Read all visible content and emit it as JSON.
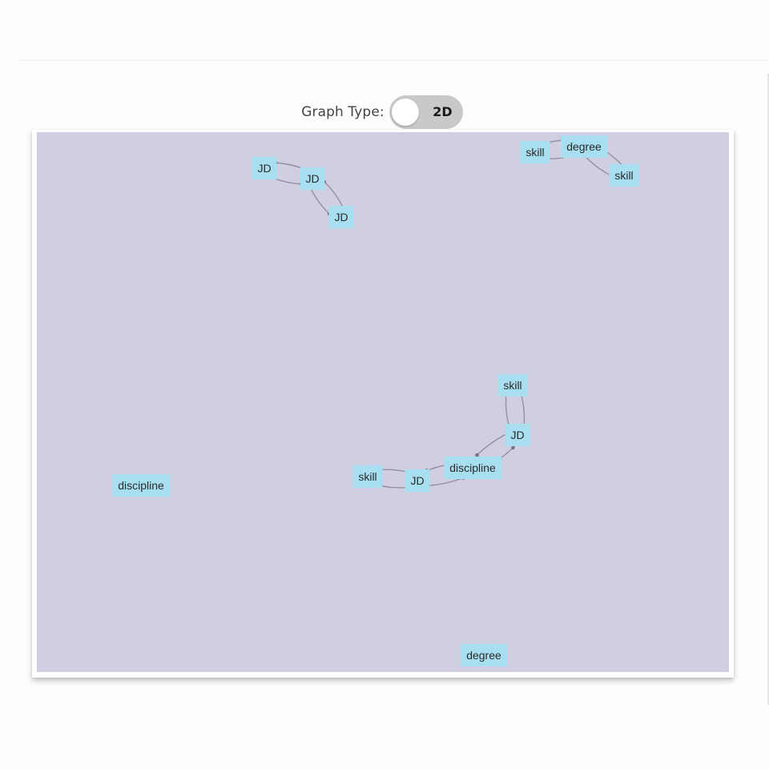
{
  "controls": {
    "graph_type_label": "Graph Type:",
    "toggle_value": "2D"
  },
  "colors": {
    "canvas_background": "#d0cfe1",
    "node_fill": "#a8dff0",
    "edge": "#8f8c9a"
  },
  "graph": {
    "nodes": [
      {
        "id": "jd1",
        "label": "JD"
      },
      {
        "id": "jd2",
        "label": "JD"
      },
      {
        "id": "jd3",
        "label": "JD"
      },
      {
        "id": "skill1",
        "label": "skill"
      },
      {
        "id": "degree1",
        "label": "degree"
      },
      {
        "id": "skill2",
        "label": "skill"
      },
      {
        "id": "skill3",
        "label": "skill"
      },
      {
        "id": "jd4",
        "label": "JD"
      },
      {
        "id": "discipline1",
        "label": "discipline"
      },
      {
        "id": "skill4",
        "label": "skill"
      },
      {
        "id": "jd5",
        "label": "JD"
      },
      {
        "id": "discipline2",
        "label": "discipline"
      },
      {
        "id": "degree2",
        "label": "degree"
      }
    ],
    "edges": [
      {
        "source": "jd1",
        "target": "jd2"
      },
      {
        "source": "jd2",
        "target": "jd1"
      },
      {
        "source": "jd2",
        "target": "jd3"
      },
      {
        "source": "jd3",
        "target": "jd2"
      },
      {
        "source": "skill1",
        "target": "degree1"
      },
      {
        "source": "degree1",
        "target": "skill1"
      },
      {
        "source": "degree1",
        "target": "skill2"
      },
      {
        "source": "skill2",
        "target": "degree1"
      },
      {
        "source": "skill3",
        "target": "jd4"
      },
      {
        "source": "jd4",
        "target": "skill3"
      },
      {
        "source": "jd4",
        "target": "discipline1"
      },
      {
        "source": "discipline1",
        "target": "jd4"
      },
      {
        "source": "skill4",
        "target": "jd5"
      },
      {
        "source": "jd5",
        "target": "skill4"
      },
      {
        "source": "jd5",
        "target": "discipline1"
      },
      {
        "source": "discipline1",
        "target": "jd5"
      }
    ]
  }
}
